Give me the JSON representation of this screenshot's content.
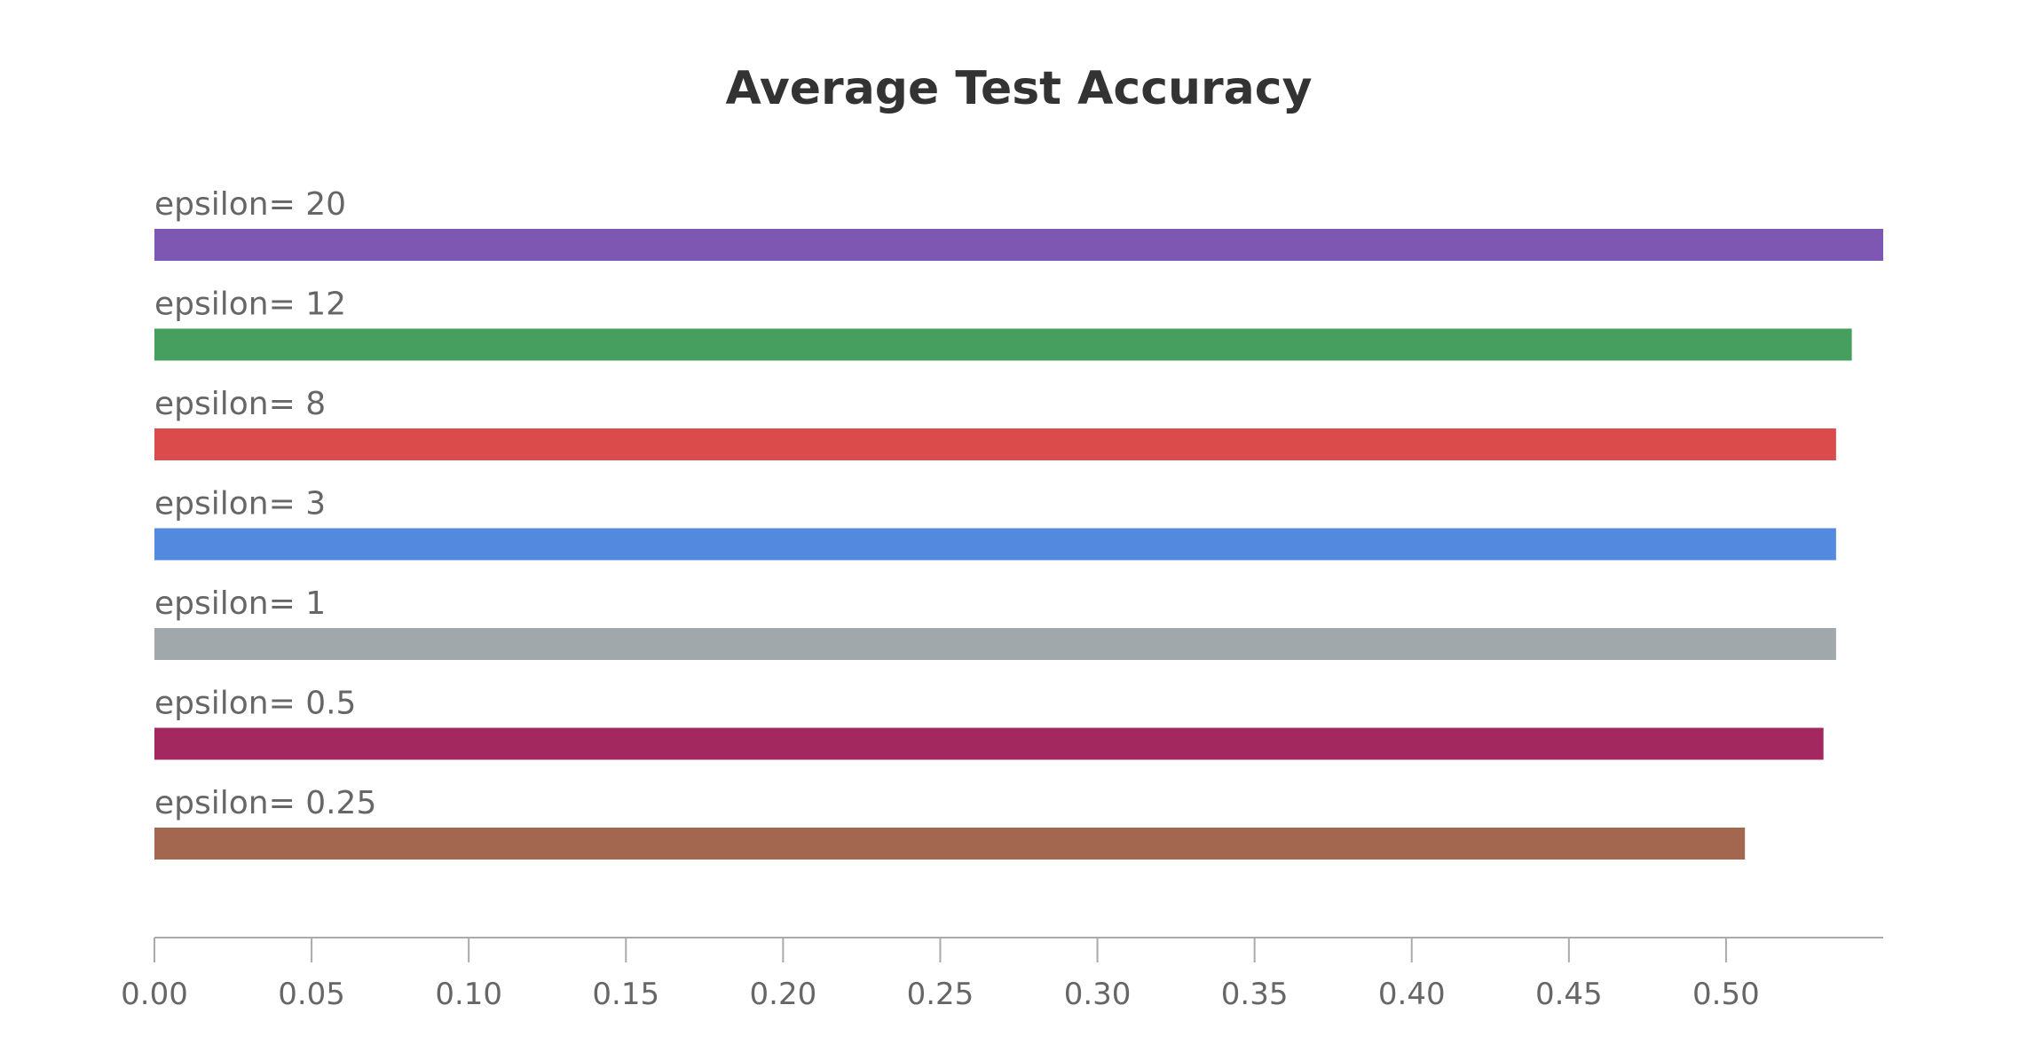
{
  "chart_data": {
    "type": "bar",
    "orientation": "horizontal",
    "title": "Average Test Accuracy",
    "xlabel": "",
    "ylabel": "",
    "xlim": [
      0,
      0.55
    ],
    "grid": false,
    "legend": "none",
    "categories": [
      "epsilon= 20",
      "epsilon= 12",
      "epsilon= 8",
      "epsilon= 3",
      "epsilon= 1",
      "epsilon= 0.5",
      "epsilon= 0.25"
    ],
    "values": [
      0.55,
      0.54,
      0.535,
      0.535,
      0.535,
      0.531,
      0.506
    ],
    "colors": [
      "#7e57b2",
      "#469e5f",
      "#db4b4b",
      "#5389de",
      "#a1a8ab",
      "#a3285f",
      "#a3674f"
    ],
    "x_ticks": [
      "0.00",
      "0.05",
      "0.10",
      "0.15",
      "0.20",
      "0.25",
      "0.30",
      "0.35",
      "0.40",
      "0.45",
      "0.50"
    ],
    "x_tick_values": [
      0,
      0.05,
      0.1,
      0.15,
      0.2,
      0.25,
      0.3,
      0.35,
      0.4,
      0.45,
      0.5
    ]
  }
}
